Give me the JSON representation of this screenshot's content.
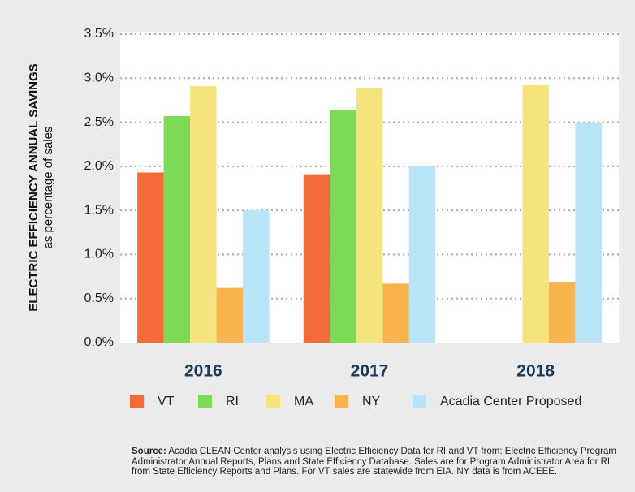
{
  "chart_data": {
    "type": "bar",
    "ylabel": "ELECTRIC EFFICIENCY ANNUAL SAVINGS",
    "ylabel_sub": "as percentage of sales",
    "categories": [
      "2016",
      "2017",
      "2018"
    ],
    "series": [
      {
        "name": "VT",
        "color": "#f26b38",
        "values": [
          1.93,
          1.91,
          null
        ]
      },
      {
        "name": "RI",
        "color": "#7ed957",
        "values": [
          2.57,
          2.64,
          null
        ]
      },
      {
        "name": "MA",
        "color": "#f5e47e",
        "values": [
          2.91,
          2.89,
          2.92
        ]
      },
      {
        "name": "NY",
        "color": "#f9b44e",
        "values": [
          0.62,
          0.67,
          0.69
        ]
      },
      {
        "name": "Acadia Center Proposed",
        "color": "#b8e4f5",
        "values": [
          1.5,
          2.0,
          2.5
        ]
      }
    ],
    "ylim": [
      0,
      3.5
    ],
    "yticks": [
      {
        "value": 0,
        "label": "0.0%"
      },
      {
        "value": 0.5,
        "label": "0.5%"
      },
      {
        "value": 1,
        "label": "1.0%"
      },
      {
        "value": 1.5,
        "label": "1.5%"
      },
      {
        "value": 2,
        "label": "2.0%"
      },
      {
        "value": 2.5,
        "label": "2.5%"
      },
      {
        "value": 3,
        "label": "3.0%"
      },
      {
        "value": 3.5,
        "label": "3.5%"
      }
    ],
    "grid": true,
    "source_label": "Source:",
    "source_text": "Acadia CLEAN Center analysis using Electric Efficiency Data for RI and VT from: Electric Efficiency Program Administrator Annual Reports, Plans and State Efficiency Database. Sales are for Program Administrator Area for RI from State Efficiency Reports and Plans. For VT sales are statewide from EIA. NY data is from ACEEE."
  }
}
